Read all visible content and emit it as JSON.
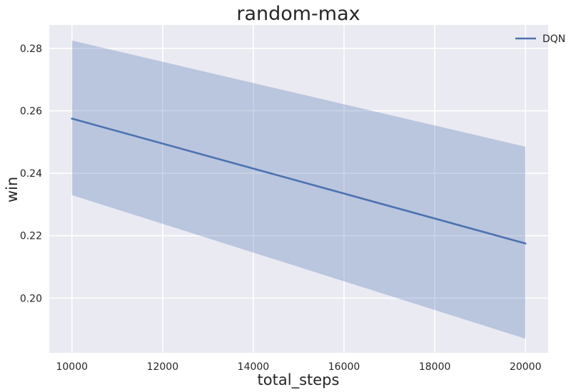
{
  "chart_data": {
    "type": "line",
    "title": "random-max",
    "xlabel": "total_steps",
    "ylabel": "win",
    "xlim": [
      9500,
      20500
    ],
    "ylim": [
      0.1825,
      0.2875
    ],
    "xticks": [
      10000,
      12000,
      14000,
      16000,
      18000,
      20000
    ],
    "yticks": [
      0.2,
      0.22,
      0.24,
      0.26,
      0.28
    ],
    "xtick_labels": [
      "10000",
      "12000",
      "14000",
      "16000",
      "18000",
      "20000"
    ],
    "ytick_labels": [
      "0.20",
      "0.22",
      "0.24",
      "0.26",
      "0.28"
    ],
    "grid": true,
    "legend_position": "top-right",
    "series": [
      {
        "name": "DQN",
        "color": "#4c72b0",
        "band_color": "#4c72b0",
        "x": [
          10000,
          20000
        ],
        "y": [
          0.2575,
          0.2175
        ],
        "lower": [
          0.233,
          0.187
        ],
        "upper": [
          0.2825,
          0.2485
        ]
      }
    ]
  }
}
